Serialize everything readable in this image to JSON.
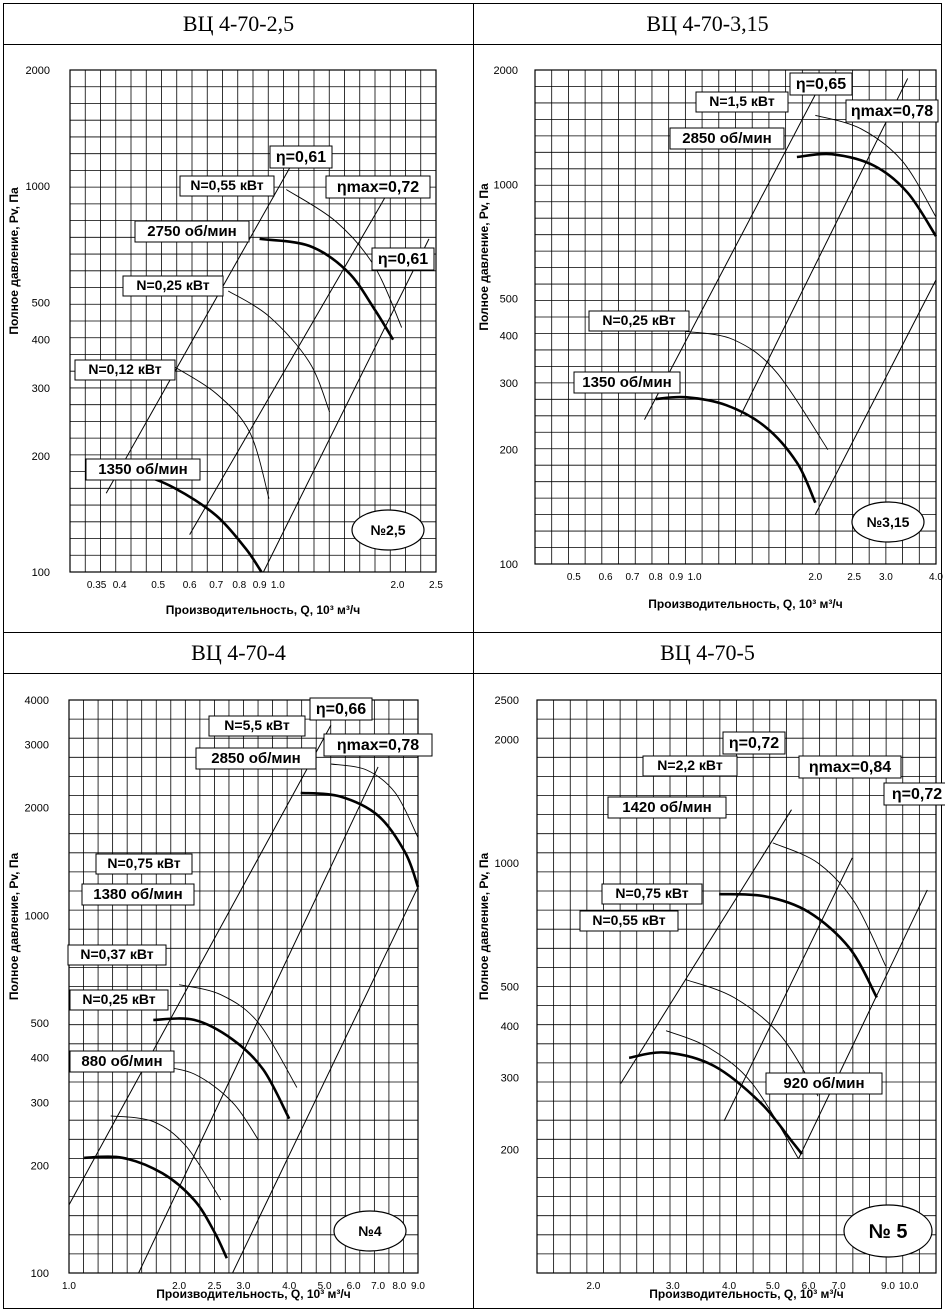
{
  "chart_data": [
    {
      "type": "line",
      "panel_title": "ВЦ 4-70-2,5",
      "xlabel": "Производительность, Q, 10³ м³/ч",
      "ylabel": "Полное давление, Pv, Па",
      "x_scale": "log",
      "y_scale": "log",
      "xlim": [
        0.3,
        2.5
      ],
      "ylim": [
        100,
        2000
      ],
      "x_ticks": [
        {
          "v": 0.35,
          "t": "0.35"
        },
        {
          "v": 0.4,
          "t": "0.4"
        },
        {
          "v": 0.5,
          "t": "0.5"
        },
        {
          "v": 0.6,
          "t": "0.6"
        },
        {
          "v": 0.7,
          "t": "0.7"
        },
        {
          "v": 0.8,
          "t": "0.8"
        },
        {
          "v": 0.9,
          "t": "0.9"
        },
        {
          "v": 1.0,
          "t": "1.0"
        },
        {
          "v": 2.0,
          "t": "2.0"
        },
        {
          "v": 2.5,
          "t": "2.5"
        }
      ],
      "y_ticks": [
        100,
        200,
        300,
        400,
        500,
        1000,
        2000
      ],
      "fan_label": "№2,5",
      "series": [
        {
          "name": "2750 об/мин",
          "kind": "speed",
          "points": [
            [
              0.9,
              730
            ],
            [
              1.2,
              700
            ],
            [
              1.5,
              600
            ],
            [
              1.75,
              480
            ],
            [
              1.95,
              400
            ]
          ]
        },
        {
          "name": "1350 об/мин",
          "kind": "speed",
          "points": [
            [
              0.38,
              175
            ],
            [
              0.45,
              178
            ],
            [
              0.55,
              165
            ],
            [
              0.7,
              140
            ],
            [
              0.83,
              115
            ],
            [
              0.91,
              100
            ]
          ]
        },
        {
          "name": "N=0,55 кВт",
          "kind": "power",
          "points": [
            [
              1.05,
              980
            ],
            [
              1.4,
              810
            ],
            [
              1.75,
              620
            ],
            [
              2.05,
              430
            ]
          ]
        },
        {
          "name": "N=0,25 кВт",
          "kind": "power",
          "points": [
            [
              0.75,
              535
            ],
            [
              0.95,
              460
            ],
            [
              1.2,
              350
            ],
            [
              1.35,
              260
            ]
          ]
        },
        {
          "name": "N=0,12 кВт",
          "kind": "power",
          "points": [
            [
              0.55,
              340
            ],
            [
              0.7,
              290
            ],
            [
              0.85,
              230
            ],
            [
              0.95,
              155
            ]
          ]
        }
      ],
      "eff_lines": [
        {
          "name": "η=0,61",
          "points": [
            [
              0.37,
              160
            ],
            [
              1.12,
              1210
            ]
          ]
        },
        {
          "name": "ηmax=0,72",
          "points": [
            [
              0.6,
              125
            ],
            [
              1.9,
              970
            ]
          ]
        },
        {
          "name": "η=0,61",
          "points": [
            [
              0.92,
              100
            ],
            [
              2.4,
              730
            ]
          ]
        }
      ]
    },
    {
      "type": "line",
      "panel_title": "ВЦ 4-70-3,15",
      "xlabel": "Производительность, Q, 10³ м³/ч",
      "ylabel": "Полное давление, Pv, Па",
      "x_scale": "log",
      "y_scale": "log",
      "xlim": [
        0.4,
        4.0
      ],
      "ylim": [
        100,
        2000
      ],
      "x_ticks": [
        {
          "v": 0.5,
          "t": "0.5"
        },
        {
          "v": 0.6,
          "t": "0.6"
        },
        {
          "v": 0.7,
          "t": "0.7"
        },
        {
          "v": 0.8,
          "t": "0.8"
        },
        {
          "v": 0.9,
          "t": "0.9"
        },
        {
          "v": 1.0,
          "t": "1.0"
        },
        {
          "v": 2.0,
          "t": "2.0"
        },
        {
          "v": 2.5,
          "t": "2.5"
        },
        {
          "v": 3.0,
          "t": "3.0"
        },
        {
          "v": 4.0,
          "t": "4.0"
        }
      ],
      "y_ticks": [
        100,
        200,
        300,
        400,
        500,
        1000,
        2000
      ],
      "fan_label": "№3,15",
      "series": [
        {
          "name": "2850 об/мин",
          "kind": "speed",
          "points": [
            [
              1.8,
              1180
            ],
            [
              2.2,
              1200
            ],
            [
              2.8,
              1120
            ],
            [
              3.4,
              950
            ],
            [
              4.0,
              730
            ]
          ]
        },
        {
          "name": "1350 об/мин",
          "kind": "speed",
          "points": [
            [
              0.8,
              272
            ],
            [
              0.95,
              275
            ],
            [
              1.2,
              262
            ],
            [
              1.5,
              230
            ],
            [
              1.8,
              185
            ],
            [
              2.0,
              145
            ]
          ]
        },
        {
          "name": "N=1,5 кВт",
          "kind": "power",
          "points": [
            [
              2.0,
              1520
            ],
            [
              2.6,
              1400
            ],
            [
              3.3,
              1150
            ],
            [
              4.0,
              820
            ]
          ]
        },
        {
          "name": "N=0,25 кВт",
          "kind": "power",
          "points": [
            [
              0.95,
              410
            ],
            [
              1.25,
              390
            ],
            [
              1.6,
              320
            ],
            [
              2.15,
              200
            ]
          ]
        }
      ],
      "eff_lines": [
        {
          "name": "η=0,65",
          "points": [
            [
              0.75,
              240
            ],
            [
              2.1,
              1900
            ]
          ]
        },
        {
          "name": "ηmax=0,78",
          "points": [
            [
              1.3,
              245
            ],
            [
              3.4,
              1900
            ]
          ]
        },
        {
          "name": "",
          "points": [
            [
              2.0,
              135
            ],
            [
              4.0,
              560
            ]
          ]
        }
      ]
    },
    {
      "type": "line",
      "panel_title": "ВЦ 4-70-4",
      "xlabel": "Производительность, Q, 10³ м³/ч",
      "ylabel": "Полное давление, Pv, Па",
      "x_scale": "log",
      "y_scale": "log",
      "xlim": [
        1.0,
        9.0
      ],
      "ylim": [
        100,
        4000
      ],
      "x_ticks": [
        {
          "v": 1.0,
          "t": "1.0"
        },
        {
          "v": 2.0,
          "t": "2.0"
        },
        {
          "v": 2.5,
          "t": "2.5"
        },
        {
          "v": 3.0,
          "t": "3.0"
        },
        {
          "v": 4.0,
          "t": "4.0"
        },
        {
          "v": 5.0,
          "t": "5.0"
        },
        {
          "v": 6.0,
          "t": "6.0"
        },
        {
          "v": 7.0,
          "t": "7.0"
        },
        {
          "v": 8.0,
          "t": "8.0"
        },
        {
          "v": 9.0,
          "t": "9.0"
        }
      ],
      "y_ticks": [
        100,
        200,
        300,
        400,
        500,
        1000,
        2000,
        3000,
        4000
      ],
      "fan_label": "№4",
      "series": [
        {
          "name": "2850 об/мин",
          "kind": "speed",
          "points": [
            [
              4.3,
              2200
            ],
            [
              5.5,
              2150
            ],
            [
              7.0,
              1900
            ],
            [
              8.3,
              1500
            ],
            [
              9.0,
              1200
            ]
          ]
        },
        {
          "name": "1380 об/мин",
          "kind": "speed",
          "points": [
            [
              1.7,
              510
            ],
            [
              2.2,
              510
            ],
            [
              2.8,
              450
            ],
            [
              3.4,
              370
            ],
            [
              4.0,
              270
            ]
          ]
        },
        {
          "name": "880 об/мин",
          "kind": "speed",
          "points": [
            [
              1.1,
              210
            ],
            [
              1.4,
              210
            ],
            [
              1.8,
              190
            ],
            [
              2.2,
              160
            ],
            [
              2.5,
              130
            ],
            [
              2.7,
              110
            ]
          ]
        },
        {
          "name": "N=5,5 кВт",
          "kind": "power",
          "points": [
            [
              5.2,
              2650
            ],
            [
              6.5,
              2550
            ],
            [
              7.8,
              2200
            ],
            [
              9.0,
              1650
            ]
          ]
        },
        {
          "name": "N=0,75 кВт",
          "kind": "power",
          "points": [
            [
              2.0,
              640
            ],
            [
              2.6,
              600
            ],
            [
              3.3,
              500
            ],
            [
              4.2,
              330
            ]
          ]
        },
        {
          "name": "N=0,37 кВт",
          "kind": "power",
          "points": [
            [
              1.7,
              380
            ],
            [
              2.2,
              360
            ],
            [
              2.8,
              300
            ],
            [
              3.3,
              235
            ]
          ]
        },
        {
          "name": "N=0,25 кВт",
          "kind": "power",
          "points": [
            [
              1.3,
              275
            ],
            [
              1.7,
              265
            ],
            [
              2.1,
              225
            ],
            [
              2.6,
              160
            ]
          ]
        }
      ],
      "eff_lines": [
        {
          "name": "η=0,66",
          "points": [
            [
              1.0,
              155
            ],
            [
              5.2,
              3400
            ]
          ]
        },
        {
          "name": "ηmax=0,78",
          "points": [
            [
              1.55,
              100
            ],
            [
              7.0,
              2600
            ]
          ]
        },
        {
          "name": "",
          "points": [
            [
              2.8,
              100
            ],
            [
              9.0,
              1200
            ]
          ]
        }
      ]
    },
    {
      "type": "line",
      "panel_title": "ВЦ 4-70-5",
      "xlabel": "Производительность, Q, 10³ м³/ч",
      "ylabel": "Полное давление, Pv, Па",
      "x_scale": "log",
      "y_scale": "log",
      "xlim": [
        1.5,
        11.5
      ],
      "ylim": [
        100,
        2500
      ],
      "x_ticks": [
        {
          "v": 2.0,
          "t": "2.0"
        },
        {
          "v": 3.0,
          "t": "3.0"
        },
        {
          "v": 4.0,
          "t": "4.0"
        },
        {
          "v": 5.0,
          "t": "5.0"
        },
        {
          "v": 6.0,
          "t": "6.0"
        },
        {
          "v": 7.0,
          "t": "7.0"
        },
        {
          "v": 9.0,
          "t": "9.0"
        },
        {
          "v": 10.0,
          "t": "10.0"
        }
      ],
      "y_ticks": [
        200,
        300,
        400,
        500,
        1000,
        2000,
        2500
      ],
      "fan_label": "№ 5",
      "series": [
        {
          "name": "1420 об/мин",
          "kind": "speed",
          "points": [
            [
              3.8,
              840
            ],
            [
              4.8,
              830
            ],
            [
              6.0,
              760
            ],
            [
              7.4,
              620
            ],
            [
              8.5,
              470
            ]
          ]
        },
        {
          "name": "920 об/мин",
          "kind": "speed",
          "points": [
            [
              2.4,
              335
            ],
            [
              2.9,
              345
            ],
            [
              3.7,
              320
            ],
            [
              4.7,
              260
            ],
            [
              5.5,
              210
            ],
            [
              5.8,
              195
            ]
          ]
        },
        {
          "name": "N=2,2 кВт",
          "kind": "power",
          "points": [
            [
              5.0,
              1120
            ],
            [
              6.3,
              1000
            ],
            [
              7.6,
              800
            ],
            [
              8.9,
              560
            ]
          ]
        },
        {
          "name": "N=0,75 кВт",
          "kind": "power",
          "points": [
            [
              3.2,
              520
            ],
            [
              4.1,
              470
            ],
            [
              5.2,
              380
            ],
            [
              6.3,
              270
            ]
          ]
        },
        {
          "name": "N=0,55 кВт",
          "kind": "power",
          "points": [
            [
              2.9,
              390
            ],
            [
              3.6,
              355
            ],
            [
              4.5,
              290
            ],
            [
              5.7,
              190
            ]
          ]
        }
      ],
      "eff_lines": [
        {
          "name": "η=0,72",
          "points": [
            [
              2.3,
              290
            ],
            [
              5.5,
              1350
            ]
          ]
        },
        {
          "name": "ηmax=0,84",
          "points": [
            [
              3.9,
              235
            ],
            [
              7.5,
              1030
            ]
          ]
        },
        {
          "name": "η=0,72",
          "points": [
            [
              5.7,
              190
            ],
            [
              11.0,
              860
            ]
          ]
        }
      ]
    }
  ],
  "label_texts": {
    "p0": [
      "η=0,61",
      "N=0,55 кВт",
      "ηmax=0,72",
      "2750 об/мин",
      "η=0,61",
      "N=0,25 кВт",
      "N=0,12 кВт",
      "1350 об/мин"
    ],
    "p1": [
      "η=0,65",
      "N=1,5 кВт",
      "ηmax=0,78",
      "2850 об/мин",
      "N=0,25 кВт",
      "1350 об/мин"
    ],
    "p2": [
      "η=0,66",
      "N=5,5 кВт",
      "ηmax=0,78",
      "2850 об/мин",
      "N=0,75 кВт",
      "1380 об/мин",
      "N=0,37 кВт",
      "N=0,25 кВт",
      "880 об/мин"
    ],
    "p3": [
      "η=0,72",
      "N=2,2 кВт",
      "ηmax=0,84",
      "1420 об/мин",
      "η=0,72",
      "N=0,75 кВт",
      "N=0,55 кВт",
      "920 об/мин"
    ]
  }
}
